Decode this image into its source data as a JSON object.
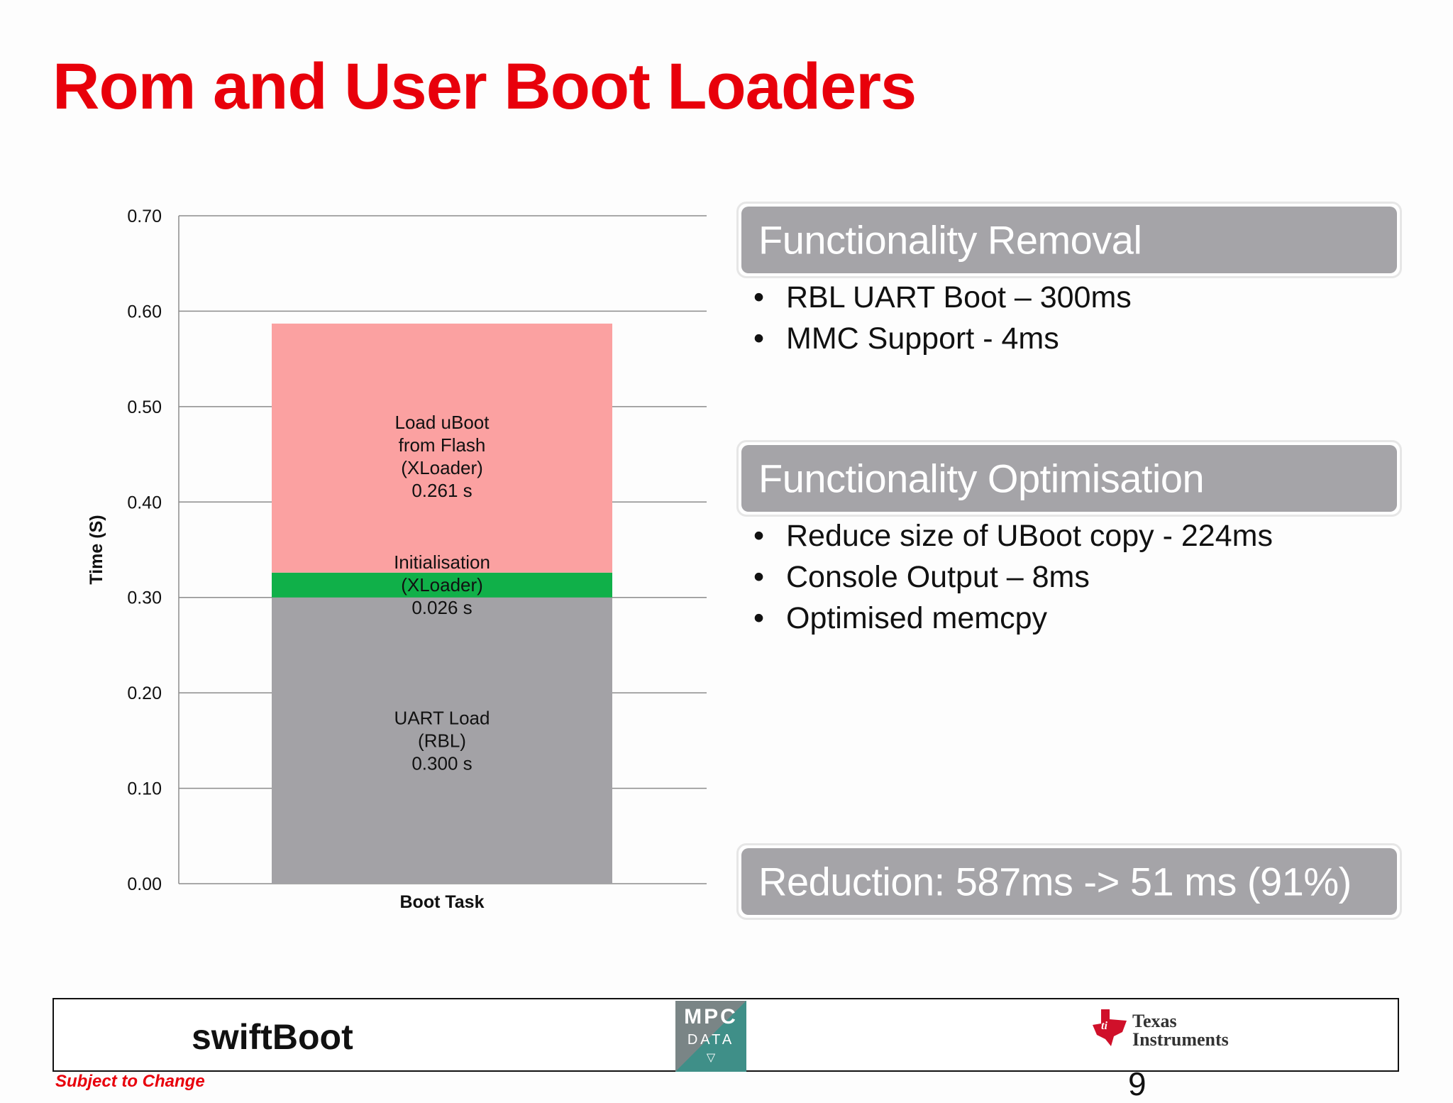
{
  "slide": {
    "title": "Rom and User Boot Loaders",
    "page_number": "9"
  },
  "chart_data": {
    "type": "bar",
    "stacked": true,
    "categories": [
      "Boot Task"
    ],
    "series": [
      {
        "name": "UART Load (RBL)",
        "values": [
          0.3
        ],
        "color": "#a3a2a6",
        "label": [
          "UART Load",
          "(RBL)",
          "0.300 s"
        ]
      },
      {
        "name": "Initialisation (XLoader)",
        "values": [
          0.026
        ],
        "color": "#10b049",
        "label": [
          "Initialisation",
          "(XLoader)",
          "0.026 s"
        ]
      },
      {
        "name": "Load uBoot from Flash (XLoader)",
        "values": [
          0.261
        ],
        "color": "#fba1a1",
        "label": [
          "Load uBoot",
          "from Flash",
          "(XLoader)",
          "0.261 s"
        ]
      }
    ],
    "ylabel": "Time (S)",
    "xlabel": "Boot Task",
    "ylim": [
      0,
      0.7
    ],
    "yticks": [
      "0.00",
      "0.10",
      "0.20",
      "0.30",
      "0.40",
      "0.50",
      "0.60",
      "0.70"
    ],
    "grid": true
  },
  "panels": {
    "removal": {
      "heading": "Functionality Removal",
      "bullets": [
        "RBL UART Boot – 300ms",
        "MMC Support - 4ms"
      ]
    },
    "optimisation": {
      "heading": "Functionality Optimisation",
      "bullets": [
        "Reduce size of UBoot copy - 224ms",
        "Console Output – 8ms",
        "Optimised memcpy"
      ]
    },
    "reduction": {
      "text": "Reduction: 587ms -> 51 ms (91%)"
    }
  },
  "footer": {
    "swiftboot_logo": "swiftBoot",
    "mpc_line1": "MPC",
    "mpc_line2": "DATA",
    "ti_line1": "Texas",
    "ti_line2": "Instruments",
    "subject": "Subject to Change"
  },
  "colors": {
    "title": "#e8000b",
    "panel": "#a5a4a8"
  }
}
